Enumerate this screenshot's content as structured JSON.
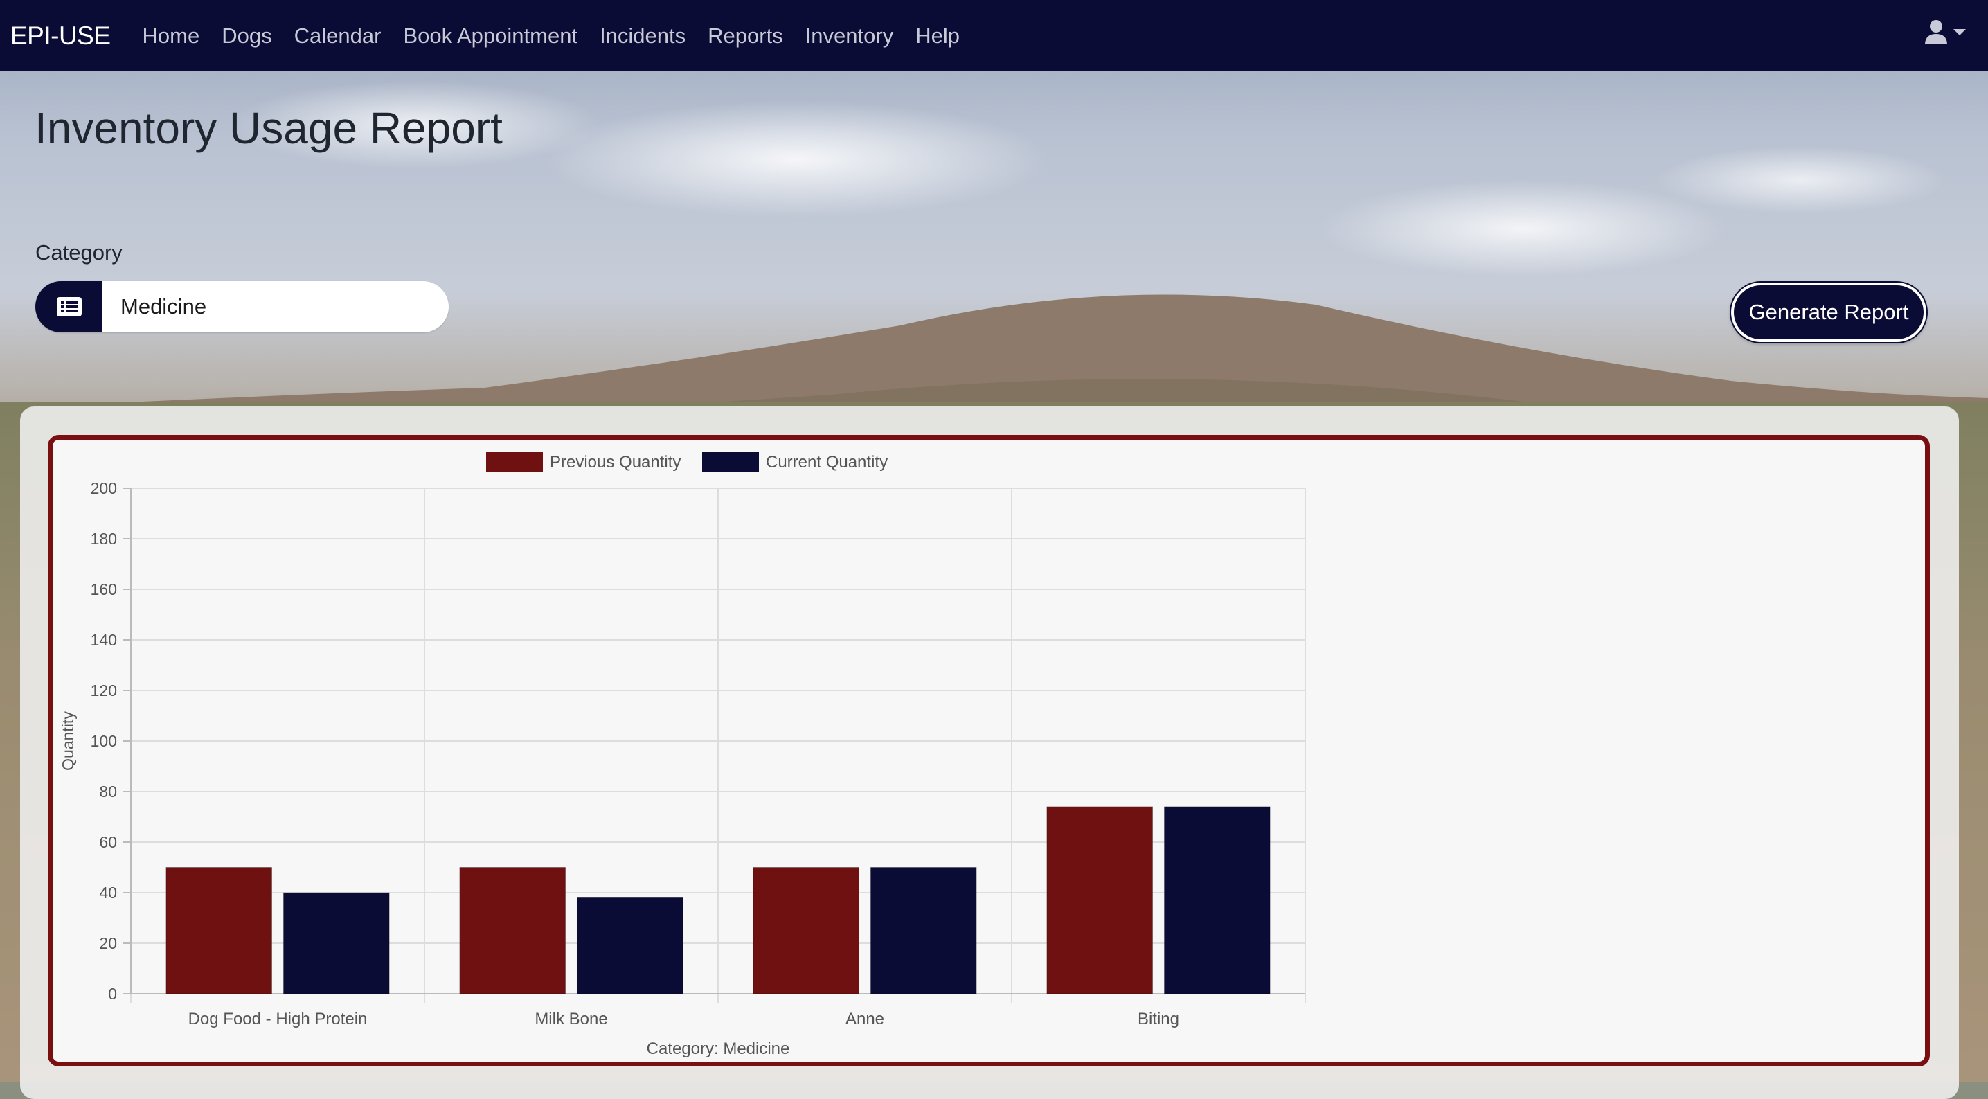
{
  "navbar": {
    "brand": "EPI-USE",
    "links": [
      "Home",
      "Dogs",
      "Calendar",
      "Book Appointment",
      "Incidents",
      "Reports",
      "Inventory",
      "Help"
    ],
    "user_icon": "user-icon",
    "dropdown_icon": "caret-down-icon"
  },
  "page": {
    "title": "Inventory Usage Report",
    "category_label": "Category",
    "category_value": "Medicine",
    "category_icon": "list-icon",
    "generate_label": "Generate Report"
  },
  "colors": {
    "navy": "#0b0c35",
    "maroon": "#701111",
    "chart_border": "#7a0f12"
  },
  "chart_data": {
    "type": "bar",
    "categories": [
      "Dog Food - High Protein",
      "Milk Bone",
      "Anne",
      "Biting"
    ],
    "series": [
      {
        "name": "Previous Quantity",
        "values": [
          50,
          50,
          50,
          74
        ],
        "color": "#701111"
      },
      {
        "name": "Current Quantity",
        "values": [
          40,
          38,
          50,
          74
        ],
        "color": "#0b0c35"
      }
    ],
    "xlabel": "Category: Medicine",
    "ylabel": "Quantity",
    "ylim": [
      0,
      200
    ],
    "yticks": [
      0,
      20,
      40,
      60,
      80,
      100,
      120,
      140,
      160,
      180,
      200
    ],
    "grid": true,
    "legend": "top"
  }
}
